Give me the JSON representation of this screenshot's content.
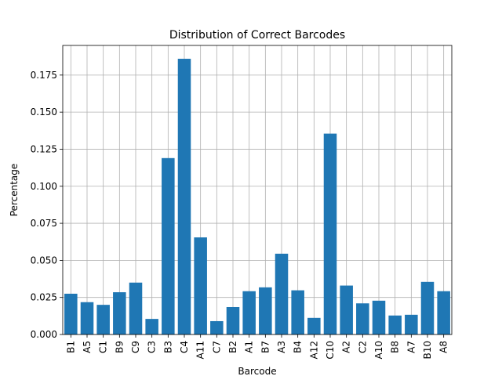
{
  "chart_data": {
    "type": "bar",
    "title": "Distribution of Correct Barcodes",
    "xlabel": "Barcode",
    "ylabel": "Percentage",
    "categories": [
      "B1",
      "A5",
      "C1",
      "B9",
      "C9",
      "C3",
      "B3",
      "C4",
      "A11",
      "C7",
      "B2",
      "A1",
      "B7",
      "A3",
      "B4",
      "A12",
      "C10",
      "A2",
      "C2",
      "A10",
      "B8",
      "A7",
      "B10",
      "A8"
    ],
    "values": [
      0.0275,
      0.0218,
      0.02,
      0.0285,
      0.035,
      0.0105,
      0.119,
      0.186,
      0.0655,
      0.009,
      0.0185,
      0.0292,
      0.0318,
      0.0545,
      0.0298,
      0.0112,
      0.1355,
      0.033,
      0.021,
      0.0228,
      0.0128,
      0.0133,
      0.0355,
      0.0292
    ],
    "ylim": [
      0,
      0.195
    ],
    "yticks": [
      "0.000",
      "0.025",
      "0.050",
      "0.075",
      "0.100",
      "0.125",
      "0.150",
      "0.175"
    ],
    "grid": true,
    "bar_color": "#1f77b4"
  }
}
